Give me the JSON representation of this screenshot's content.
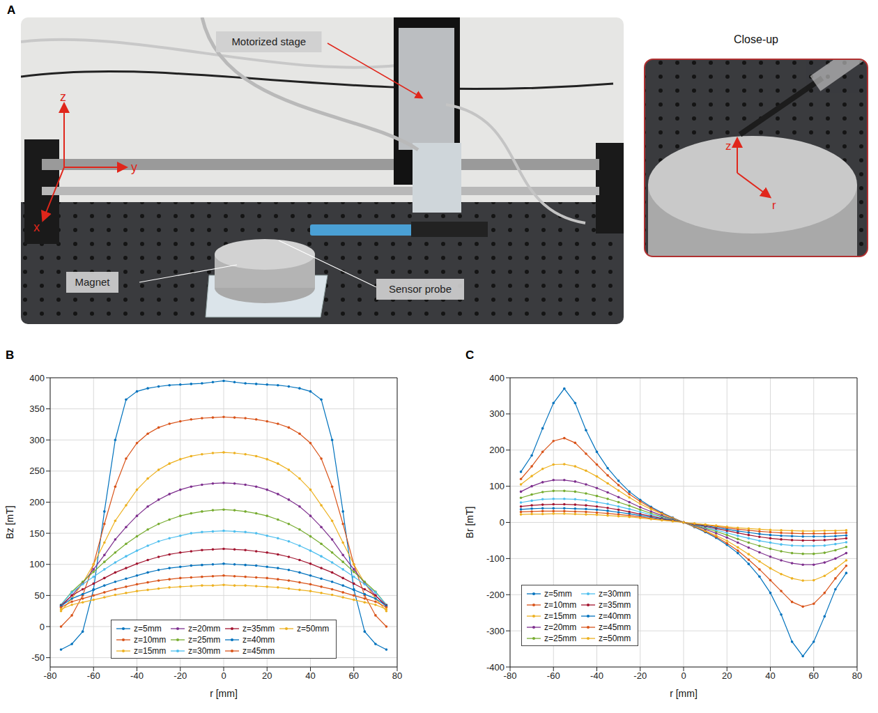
{
  "panel_a": {
    "panel": "A",
    "labels": {
      "stage": "Motorized stage",
      "magnet": "Magnet",
      "probe": "Sensor probe"
    },
    "axes": [
      "x",
      "y",
      "z"
    ],
    "closeup": {
      "title": "Close-up",
      "axes": [
        "z",
        "r"
      ]
    }
  },
  "chart_data": [
    {
      "panel": "B",
      "type": "line",
      "x_label": "r [mm]",
      "y_label": "Bz [mT]",
      "xlim": [
        -80,
        80
      ],
      "xticks": [
        -80,
        -60,
        -40,
        -20,
        0,
        20,
        40,
        60,
        80
      ],
      "ylim": [
        -65,
        400
      ],
      "yticks": [
        -50,
        0,
        50,
        100,
        150,
        200,
        250,
        300,
        350,
        400
      ],
      "grid": true,
      "legend": "lower center",
      "marker": "o",
      "x": [
        -75,
        -70,
        -65,
        -60,
        -55,
        -50,
        -45,
        -40,
        -35,
        -30,
        -25,
        -20,
        -15,
        -10,
        -5,
        0,
        5,
        10,
        15,
        20,
        25,
        30,
        35,
        40,
        45,
        50,
        55,
        60,
        65,
        70,
        75
      ],
      "series": [
        {
          "name": "z=5mm",
          "color": "#0072BD",
          "values": [
            -37,
            -28,
            -8,
            60,
            185,
            300,
            365,
            378,
            383,
            386,
            388,
            389,
            390,
            391,
            393,
            395,
            393,
            391,
            390,
            389,
            388,
            386,
            383,
            378,
            365,
            300,
            185,
            60,
            -8,
            -28,
            -37
          ]
        },
        {
          "name": "z=10mm",
          "color": "#D95319",
          "values": [
            0,
            18,
            50,
            100,
            165,
            225,
            270,
            295,
            310,
            320,
            326,
            330,
            333,
            335,
            336,
            337,
            336,
            335,
            333,
            330,
            326,
            320,
            310,
            295,
            270,
            225,
            165,
            100,
            50,
            18,
            0
          ]
        },
        {
          "name": "z=15mm",
          "color": "#EDB120",
          "values": [
            25,
            45,
            70,
            100,
            135,
            170,
            195,
            220,
            238,
            252,
            262,
            269,
            274,
            277,
            279,
            280,
            279,
            277,
            274,
            269,
            262,
            252,
            238,
            220,
            195,
            170,
            135,
            100,
            70,
            45,
            25
          ]
        },
        {
          "name": "z=20mm",
          "color": "#7E2F8E",
          "values": [
            32,
            50,
            70,
            92,
            115,
            140,
            160,
            178,
            193,
            204,
            213,
            220,
            225,
            228,
            230,
            231,
            230,
            228,
            225,
            220,
            213,
            204,
            193,
            178,
            160,
            140,
            115,
            92,
            70,
            50,
            32
          ]
        },
        {
          "name": "z=25mm",
          "color": "#77AC30",
          "values": [
            35,
            56,
            72,
            88,
            104,
            119,
            133,
            145,
            156,
            165,
            172,
            178,
            182,
            185,
            187,
            188,
            187,
            185,
            182,
            178,
            172,
            165,
            156,
            145,
            133,
            119,
            104,
            88,
            72,
            56,
            35
          ]
        },
        {
          "name": "z=30mm",
          "color": "#4DBEEE",
          "values": [
            35,
            55,
            68,
            80,
            92,
            103,
            113,
            122,
            130,
            137,
            142,
            146,
            150,
            152,
            153,
            154,
            153,
            152,
            150,
            146,
            142,
            137,
            130,
            122,
            113,
            103,
            92,
            80,
            68,
            55,
            35
          ]
        },
        {
          "name": "z=35mm",
          "color": "#A2142F",
          "values": [
            34,
            50,
            60,
            69,
            78,
            87,
            94,
            101,
            107,
            112,
            116,
            119,
            121,
            123,
            124,
            125,
            124,
            123,
            121,
            119,
            116,
            112,
            107,
            101,
            94,
            87,
            78,
            69,
            60,
            50,
            34
          ]
        },
        {
          "name": "z=40mm",
          "color": "#0072BD",
          "values": [
            33,
            45,
            52,
            59,
            66,
            72,
            77,
            82,
            87,
            91,
            94,
            96,
            98,
            99,
            100,
            101,
            100,
            99,
            98,
            96,
            94,
            91,
            87,
            82,
            77,
            72,
            66,
            59,
            52,
            45,
            33
          ]
        },
        {
          "name": "z=45mm",
          "color": "#D95319",
          "values": [
            31,
            40,
            45,
            50,
            55,
            60,
            64,
            68,
            71,
            74,
            76,
            78,
            79,
            80,
            81,
            82,
            81,
            80,
            79,
            78,
            76,
            74,
            71,
            68,
            64,
            60,
            55,
            50,
            45,
            40,
            31
          ]
        },
        {
          "name": "z=50mm",
          "color": "#EDB120",
          "values": [
            28,
            35,
            39,
            43,
            47,
            51,
            54,
            57,
            59,
            61,
            63,
            64,
            65,
            66,
            66,
            67,
            66,
            66,
            65,
            64,
            63,
            61,
            59,
            57,
            54,
            51,
            47,
            43,
            39,
            35,
            28
          ]
        }
      ]
    },
    {
      "panel": "C",
      "type": "line",
      "x_label": "r [mm]",
      "y_label": "Br [mT]",
      "xlim": [
        -80,
        80
      ],
      "xticks": [
        -80,
        -60,
        -40,
        -20,
        0,
        20,
        40,
        60,
        80
      ],
      "ylim": [
        -400,
        400
      ],
      "yticks": [
        -400,
        -300,
        -200,
        -100,
        0,
        100,
        200,
        300,
        400
      ],
      "grid": true,
      "legend": "lower left",
      "marker": "o",
      "x": [
        -75,
        -70,
        -65,
        -60,
        -55,
        -50,
        -45,
        -40,
        -35,
        -30,
        -25,
        -20,
        -15,
        -10,
        -5,
        0,
        5,
        10,
        15,
        20,
        25,
        30,
        35,
        40,
        45,
        50,
        55,
        60,
        65,
        70,
        75
      ],
      "series": [
        {
          "name": "z=5mm",
          "color": "#0072BD",
          "values": [
            140,
            185,
            260,
            330,
            370,
            330,
            255,
            195,
            150,
            115,
            85,
            62,
            43,
            27,
            13,
            0,
            -13,
            -27,
            -43,
            -62,
            -85,
            -115,
            -150,
            -195,
            -255,
            -330,
            -370,
            -330,
            -260,
            -185,
            -140
          ]
        },
        {
          "name": "z=10mm",
          "color": "#D95319",
          "values": [
            120,
            155,
            195,
            225,
            233,
            220,
            190,
            160,
            130,
            103,
            78,
            58,
            40,
            25,
            12,
            0,
            -12,
            -25,
            -40,
            -58,
            -78,
            -103,
            -130,
            -160,
            -190,
            -220,
            -233,
            -225,
            -195,
            -155,
            -120
          ]
        },
        {
          "name": "z=15mm",
          "color": "#EDB120",
          "values": [
            105,
            128,
            148,
            160,
            161,
            155,
            143,
            127,
            108,
            88,
            69,
            51,
            36,
            23,
            11,
            0,
            -11,
            -23,
            -36,
            -51,
            -69,
            -88,
            -108,
            -127,
            -143,
            -155,
            -161,
            -160,
            -148,
            -128,
            -105
          ]
        },
        {
          "name": "z=20mm",
          "color": "#7E2F8E",
          "values": [
            85,
            100,
            111,
            117,
            117,
            113,
            105,
            95,
            83,
            70,
            56,
            42,
            30,
            19,
            9,
            0,
            -9,
            -19,
            -30,
            -42,
            -56,
            -70,
            -83,
            -95,
            -105,
            -113,
            -117,
            -117,
            -111,
            -100,
            -85
          ]
        },
        {
          "name": "z=25mm",
          "color": "#77AC30",
          "values": [
            68,
            77,
            84,
            87,
            87,
            85,
            80,
            73,
            65,
            56,
            46,
            35,
            25,
            16,
            8,
            0,
            -8,
            -16,
            -25,
            -35,
            -46,
            -56,
            -65,
            -73,
            -80,
            -85,
            -87,
            -87,
            -84,
            -77,
            -68
          ]
        },
        {
          "name": "z=30mm",
          "color": "#4DBEEE",
          "values": [
            55,
            60,
            64,
            65,
            65,
            64,
            61,
            56,
            51,
            44,
            37,
            29,
            21,
            14,
            7,
            0,
            -7,
            -14,
            -21,
            -29,
            -37,
            -44,
            -51,
            -56,
            -61,
            -64,
            -65,
            -65,
            -64,
            -60,
            -55
          ]
        },
        {
          "name": "z=35mm",
          "color": "#A2142F",
          "values": [
            44,
            47,
            49,
            50,
            50,
            49,
            47,
            44,
            40,
            35,
            29,
            23,
            17,
            11,
            6,
            0,
            -6,
            -11,
            -17,
            -23,
            -29,
            -35,
            -40,
            -44,
            -47,
            -49,
            -50,
            -50,
            -49,
            -47,
            -44
          ]
        },
        {
          "name": "z=40mm",
          "color": "#0072BD",
          "values": [
            36,
            38,
            39,
            39,
            39,
            38,
            37,
            35,
            32,
            28,
            24,
            19,
            14,
            9,
            5,
            0,
            -5,
            -9,
            -14,
            -19,
            -24,
            -28,
            -32,
            -35,
            -37,
            -38,
            -39,
            -39,
            -39,
            -38,
            -36
          ]
        },
        {
          "name": "z=45mm",
          "color": "#D95319",
          "values": [
            29,
            30,
            31,
            31,
            31,
            30,
            29,
            27,
            25,
            22,
            19,
            15,
            11,
            7,
            4,
            0,
            -4,
            -7,
            -11,
            -15,
            -19,
            -22,
            -25,
            -27,
            -29,
            -30,
            -31,
            -31,
            -31,
            -30,
            -29
          ]
        },
        {
          "name": "z=50mm",
          "color": "#EDB120",
          "values": [
            22,
            23,
            23,
            24,
            24,
            23,
            22,
            21,
            19,
            17,
            15,
            12,
            9,
            6,
            3,
            0,
            -3,
            -6,
            -9,
            -12,
            -15,
            -17,
            -19,
            -21,
            -22,
            -23,
            -24,
            -24,
            -23,
            -23,
            -22
          ]
        }
      ]
    }
  ]
}
